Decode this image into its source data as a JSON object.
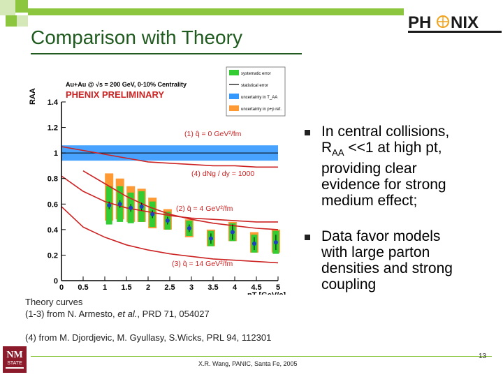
{
  "slide": {
    "title": "Comparison with Theory",
    "logo_text": "PHENIX",
    "footer": "X.R. Wang, PANIC, Santa Fe, 2005",
    "page_number": "13",
    "nmsu_logo": "NM STATE UNIVERSITY",
    "accent_color": "#8cc63f",
    "title_color": "#1f5b1f"
  },
  "bullets": [
    {
      "text_lines": [
        "In central collisions,",
        "R",
        "AA",
        " <<1 at high pt,",
        "providing clear",
        "evidence for strong",
        "medium effect;"
      ]
    },
    {
      "text_lines": [
        "Data favor models",
        "with large parton",
        "densities and strong",
        "coupling"
      ]
    }
  ],
  "references": {
    "line1": "Theory curves",
    "line2_prefix": "(1-3) from N. Armesto, ",
    "line2_italic": "et al.",
    "line2_suffix": ", PRD 71, 054027",
    "line3": "(4) from M. Djordjevic, M. Gyullasy, S.Wicks, PRL 94, 112301"
  },
  "chart_data": {
    "type": "scatter",
    "header": "Au+Au @ √s = 200 GeV, 0-10% Centrality",
    "banner": "PHENIX PRELIMINARY",
    "xlabel": "pT [GeV/c]",
    "ylabel": "RAA",
    "xlim": [
      0,
      5
    ],
    "ylim": [
      0,
      1.4
    ],
    "xticks": [
      "0",
      "0.5",
      "1",
      "1.5",
      "2",
      "2.5",
      "3",
      "3.5",
      "4",
      "4.5",
      "5"
    ],
    "yticks": [
      "0",
      "0.2",
      "0.4",
      "0.6",
      "0.8",
      "1",
      "1.2",
      "1.4"
    ],
    "legend": [
      {
        "label": "systematic error",
        "color": "#33cc33"
      },
      {
        "label": "statistical error",
        "color": "#000000"
      },
      {
        "label": "uncertainty in T_AA",
        "color": "#3399ff"
      },
      {
        "label": "uncertainty in p+p ref.",
        "color": "#ff9933"
      }
    ],
    "taa_band": [
      0.94,
      1.06
    ],
    "data": [
      {
        "x": 1.1,
        "y": 0.59,
        "syst": 0.15,
        "stat": 0.03,
        "pp": [
          0.47,
          0.84
        ]
      },
      {
        "x": 1.35,
        "y": 0.6,
        "syst": 0.14,
        "stat": 0.03,
        "pp": [
          0.48,
          0.8
        ]
      },
      {
        "x": 1.6,
        "y": 0.57,
        "syst": 0.12,
        "stat": 0.03,
        "pp": [
          0.46,
          0.74
        ]
      },
      {
        "x": 1.85,
        "y": 0.58,
        "syst": 0.12,
        "stat": 0.03,
        "pp": [
          0.46,
          0.72
        ]
      },
      {
        "x": 2.1,
        "y": 0.52,
        "syst": 0.1,
        "stat": 0.03,
        "pp": [
          0.41,
          0.65
        ]
      },
      {
        "x": 2.45,
        "y": 0.47,
        "syst": 0.07,
        "stat": 0.03,
        "pp": [
          0.4,
          0.56
        ]
      },
      {
        "x": 2.95,
        "y": 0.41,
        "syst": 0.06,
        "stat": 0.03,
        "pp": [
          0.34,
          0.48
        ]
      },
      {
        "x": 3.45,
        "y": 0.33,
        "syst": 0.06,
        "stat": 0.04,
        "pp": [
          0.27,
          0.4
        ]
      },
      {
        "x": 3.95,
        "y": 0.38,
        "syst": 0.07,
        "stat": 0.06,
        "pp": [
          0.31,
          0.46
        ]
      },
      {
        "x": 4.45,
        "y": 0.29,
        "syst": 0.07,
        "stat": 0.05,
        "pp": [
          0.22,
          0.38
        ]
      },
      {
        "x": 4.95,
        "y": 0.3,
        "syst": 0.09,
        "stat": 0.06,
        "pp": [
          0.22,
          0.4
        ]
      }
    ],
    "curves": [
      {
        "label": "(1) q̂ = 0 GeV²/fm",
        "color": "#cc2222",
        "points": [
          [
            0,
            1.05
          ],
          [
            0.5,
            1.02
          ],
          [
            1,
            0.99
          ],
          [
            1.5,
            0.96
          ],
          [
            2,
            0.93
          ],
          [
            2.5,
            0.92
          ],
          [
            3,
            0.91
          ],
          [
            3.5,
            0.9
          ],
          [
            4,
            0.9
          ],
          [
            4.5,
            0.89
          ],
          [
            5,
            0.89
          ]
        ]
      },
      {
        "label": "(4) dNg / dy = 1000",
        "color": "#cc2222",
        "points": [
          [
            0.5,
            0.86
          ],
          [
            1,
            0.76
          ],
          [
            1.5,
            0.66
          ],
          [
            2,
            0.58
          ],
          [
            2.5,
            0.52
          ],
          [
            3,
            0.48
          ],
          [
            3.5,
            0.45
          ],
          [
            4,
            0.43
          ],
          [
            4.5,
            0.41
          ],
          [
            5,
            0.4
          ]
        ]
      },
      {
        "label": "(2) q̂ = 4 GeV²/fm",
        "color": "#cc2222",
        "points": [
          [
            0,
            0.82
          ],
          [
            0.5,
            0.7
          ],
          [
            1,
            0.62
          ],
          [
            1.5,
            0.57
          ],
          [
            2,
            0.54
          ],
          [
            2.5,
            0.51
          ],
          [
            3,
            0.49
          ],
          [
            3.5,
            0.48
          ],
          [
            4,
            0.47
          ],
          [
            4.5,
            0.46
          ],
          [
            5,
            0.46
          ]
        ]
      },
      {
        "label": "(3) q̂ = 14 GeV²/fm",
        "color": "#cc2222",
        "points": [
          [
            0,
            0.58
          ],
          [
            0.5,
            0.42
          ],
          [
            1,
            0.34
          ],
          [
            1.5,
            0.28
          ],
          [
            2,
            0.24
          ],
          [
            2.5,
            0.21
          ],
          [
            3,
            0.19
          ],
          [
            3.5,
            0.17
          ],
          [
            4,
            0.16
          ],
          [
            4.5,
            0.15
          ],
          [
            5,
            0.14
          ]
        ]
      }
    ]
  }
}
